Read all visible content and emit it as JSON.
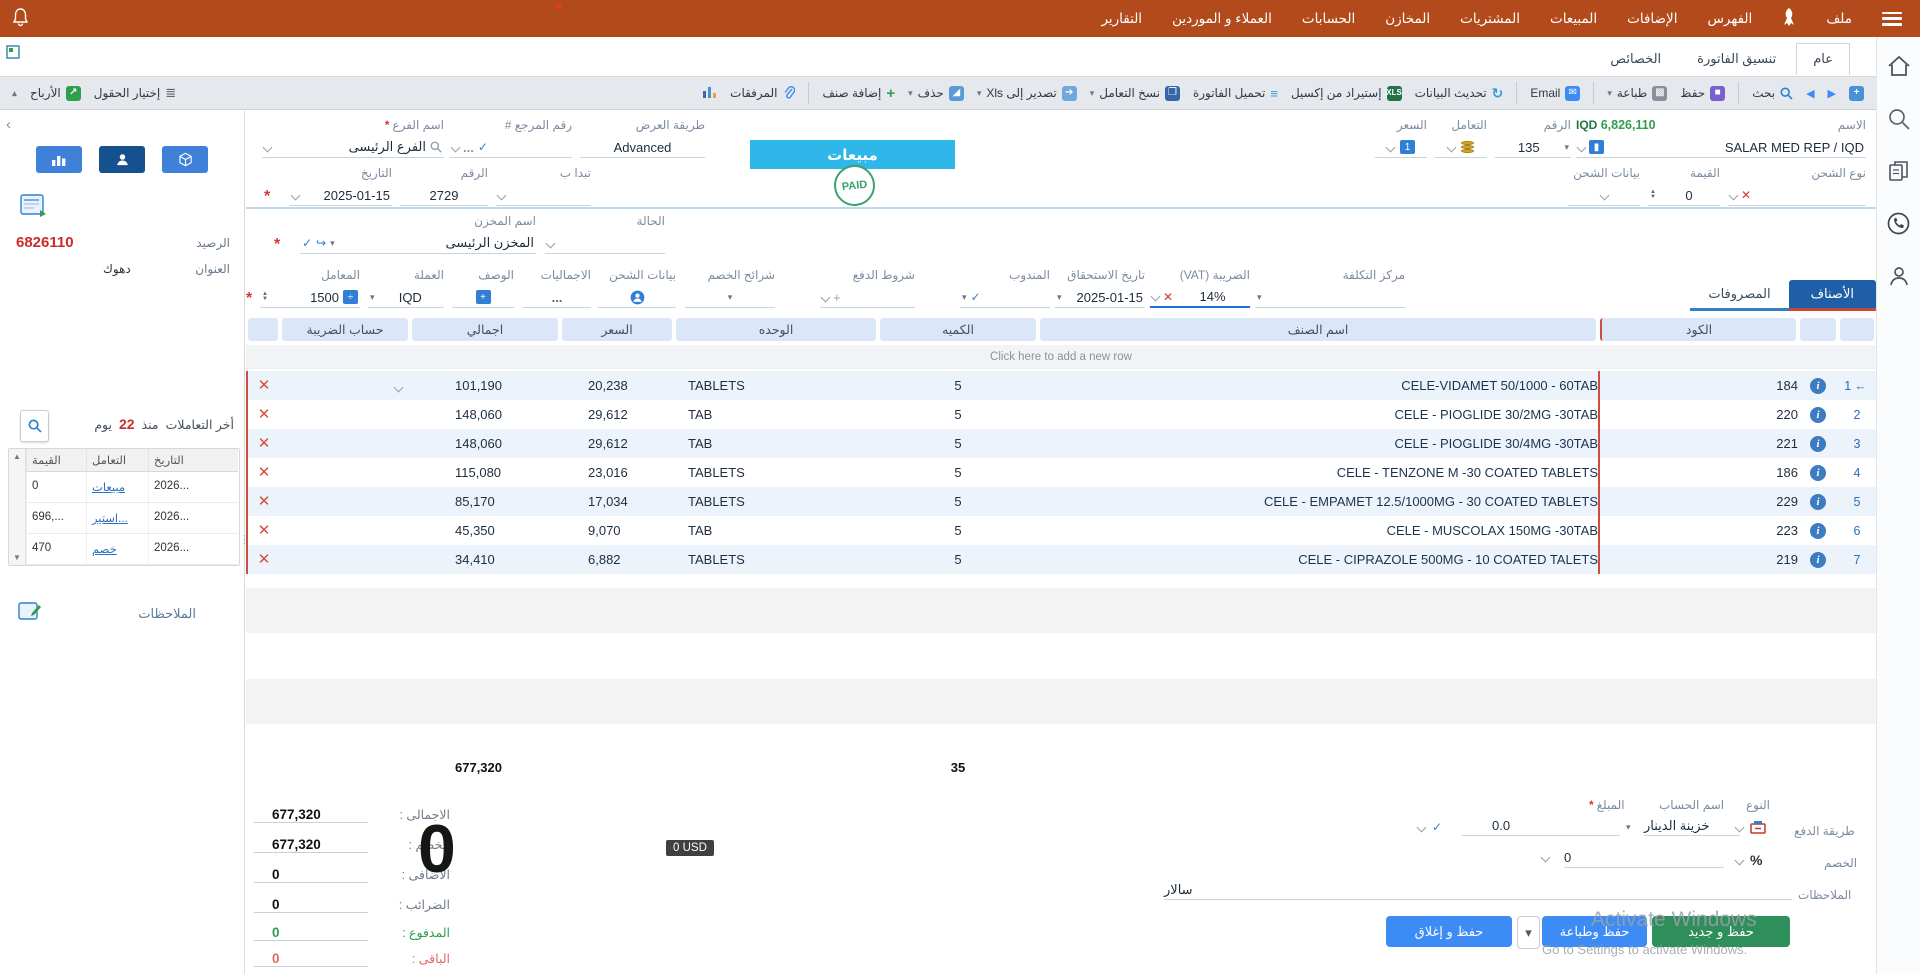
{
  "colors": {
    "accent": "#b24a1b",
    "primary_blue": "#3d8bf5",
    "tab_active": "#1f5fa8",
    "green": "#2e8f5b",
    "red_line": "#cd4d3e"
  },
  "menubar": {
    "file": "ملف",
    "index": "الفهرس",
    "items": [
      "الإضافات",
      "المبيعات",
      "المشتريات",
      "المخازن",
      "الحسابات",
      "العملاء و الموردين",
      "التقارير"
    ]
  },
  "page_tabs": {
    "general": "عام",
    "invoice_format": "تنسيق الفاتورة",
    "properties": "الخصائص"
  },
  "toolbar": {
    "search": "بحث",
    "save": "حفظ",
    "print": "طباعة",
    "email": "Email",
    "refresh": "تح�دیث البيانات",
    "refresh_fixed": "تحديث البيانات",
    "import_excel": "إستيراد من إكسيل",
    "load_invoice": "تحميل الفاتورة",
    "copy_transaction": "نسخ التعامل",
    "export_xls": "تصدير إلى Xls",
    "delete": "حذف",
    "add_item": "إضافة صنف",
    "attachments": "المرفقات",
    "choose_fields": "إختيار الحقول",
    "profits": "الأرباح"
  },
  "header": {
    "name": {
      "label": "الاسم",
      "value": "SALAR MED REP / IQD",
      "balance": "6,826,110",
      "balance_currency": "IQD"
    },
    "number": {
      "label": "الرقم",
      "value": "135"
    },
    "transaction": {
      "label": "التعامل"
    },
    "price_tier": {
      "label": "السعر",
      "badge": "1"
    },
    "display_method": {
      "label": "طريقة العرض",
      "value": "Advanced"
    },
    "reference": {
      "label": "رقم المرجع #",
      "dots": "..."
    },
    "branch": {
      "label": "اسم الفرع",
      "value": "الفرع الرئيسى"
    },
    "shipping_type": {
      "label": "نوع الشحن"
    },
    "shipping_value": {
      "label": "القيمة",
      "value": "0"
    },
    "shipping_data": {
      "label": "بيانات الشحن"
    },
    "starts_with": {
      "label": "تبدا ب"
    },
    "doc_number": {
      "label": "الرقم",
      "value": "2729"
    },
    "date": {
      "label": "التاريخ",
      "value": "2025-01-15"
    },
    "status": {
      "label": "الحالة"
    },
    "warehouse": {
      "label": "اسم المخزن",
      "value": "المخزن الرئيسى"
    },
    "factor": {
      "label": "المعامل",
      "value": "1500"
    },
    "currency": {
      "label": "العملة",
      "value": "IQD"
    },
    "description": {
      "label": "الوصف"
    },
    "totals_btn": {
      "label": "الاجماليات",
      "value": "..."
    },
    "shipping_data2": {
      "label": "بيانات الشحن"
    },
    "discount_tiers": {
      "label": "شرائح الخصم"
    },
    "payment_terms": {
      "label": "شروط الدفع"
    },
    "representative": {
      "label": "المندوب"
    },
    "due_date": {
      "label": "تاريخ الاستحقاق",
      "value": "2025-01-15"
    },
    "vat": {
      "label": "الضريبة  (VAT)",
      "value": "14%"
    },
    "cost_center": {
      "label": "مركز التكلفة"
    },
    "banner": "مبيعات",
    "stamp": "PAID"
  },
  "items": {
    "tab_items": "الأصناف",
    "tab_expenses": "المصروفات",
    "add_row_hint": "Click here to add a new row",
    "columns": {
      "code": "الكود",
      "name": "اسم الصنف",
      "qty": "الكميه",
      "unit": "الوحده",
      "price": "السعر",
      "total": "اجمالي",
      "tax": "حساب الضريبة"
    },
    "rows": [
      {
        "num": "1",
        "arrow": "←",
        "code": "184",
        "name": "CELE-VIDAMET 50/1000 - 60TAB",
        "qty": "5",
        "unit": "TABLETS",
        "price": "20,238",
        "total": "101,190"
      },
      {
        "num": "2",
        "arrow": "",
        "code": "220",
        "name": "CELE - PIOGLIDE 30/2MG -30TAB",
        "qty": "5",
        "unit": "TAB",
        "price": "29,612",
        "total": "148,060"
      },
      {
        "num": "3",
        "arrow": "",
        "code": "221",
        "name": "CELE - PIOGLIDE 30/4MG -30TAB",
        "qty": "5",
        "unit": "TAB",
        "price": "29,612",
        "total": "148,060"
      },
      {
        "num": "4",
        "arrow": "",
        "code": "186",
        "name": "CELE - TENZONE M -30 COATED TABLETS",
        "qty": "5",
        "unit": "TABLETS",
        "price": "23,016",
        "total": "115,080"
      },
      {
        "num": "5",
        "arrow": "",
        "code": "229",
        "name": "CELE - EMPAMET 12.5/1000MG - 30 COATED TABLETS",
        "qty": "5",
        "unit": "TABLETS",
        "price": "17,034",
        "total": "85,170"
      },
      {
        "num": "6",
        "arrow": "",
        "code": "223",
        "name": "CELE - MUSCOLAX 150MG -30TAB",
        "qty": "5",
        "unit": "TAB",
        "price": "9,070",
        "total": "45,350"
      },
      {
        "num": "7",
        "arrow": "",
        "code": "219",
        "name": "CELE - CIPRAZOLE 500MG - 10 COATED TALETS",
        "qty": "5",
        "unit": "TABLETS",
        "price": "6,882",
        "total": "34,410"
      }
    ],
    "footer": {
      "total": "677,320",
      "qty": "35"
    }
  },
  "summary": {
    "rows": [
      {
        "label": "الاجمالى :",
        "value": "677,320",
        "cls": ""
      },
      {
        "label": "الخصم :",
        "value": "677,320",
        "cls": ""
      },
      {
        "label": "الاضافى :",
        "value": "0",
        "cls": ""
      },
      {
        "label": "الضرائب :",
        "value": "0",
        "cls": ""
      },
      {
        "label": "المدفوع :",
        "value": "0",
        "cls": "g"
      },
      {
        "label": "الباقى :",
        "value": "0",
        "cls": "r"
      }
    ],
    "big_zero": "0",
    "usd_badge": "0 USD"
  },
  "payment": {
    "type_label": "النوع",
    "account_label": "اسم الحساب",
    "amount_label": "المبلغ",
    "method_label": "طريقة الدفع",
    "account_value": "خزينة الدينار",
    "amount_value": "0.0",
    "discount_label": "الخصم",
    "percent": "%",
    "discount_value": "0",
    "notes_label": "الملاحظات",
    "notes_value": "سالار"
  },
  "actions": {
    "save_new": "حفظ و جديد",
    "save_print": "حفظ وطباعة",
    "save_close": "حفظ و إغلاق"
  },
  "watermark": {
    "line1": "Activate Windows",
    "line2": "Go to Settings to activate Windows."
  },
  "sidebar": {
    "balance_label": "الرصيد",
    "balance_value": "6826110",
    "address_label": "العنوان",
    "address_value": "دهوك",
    "last_tx": {
      "prefix": "أخر التعاملات",
      "since": "منذ",
      "days": "22",
      "unit": "يوم"
    },
    "table": {
      "headers": [
        "القيمة",
        "التعامل",
        "التاريخ"
      ],
      "rows": [
        {
          "value": "0",
          "type": "مبيعات",
          "date": "2026..."
        },
        {
          "value": "696,...",
          "type": "استير...",
          "date": "2026..."
        },
        {
          "value": "470",
          "type": "خصم",
          "date": "2026..."
        }
      ]
    },
    "notes_label": "الملاحظات"
  }
}
